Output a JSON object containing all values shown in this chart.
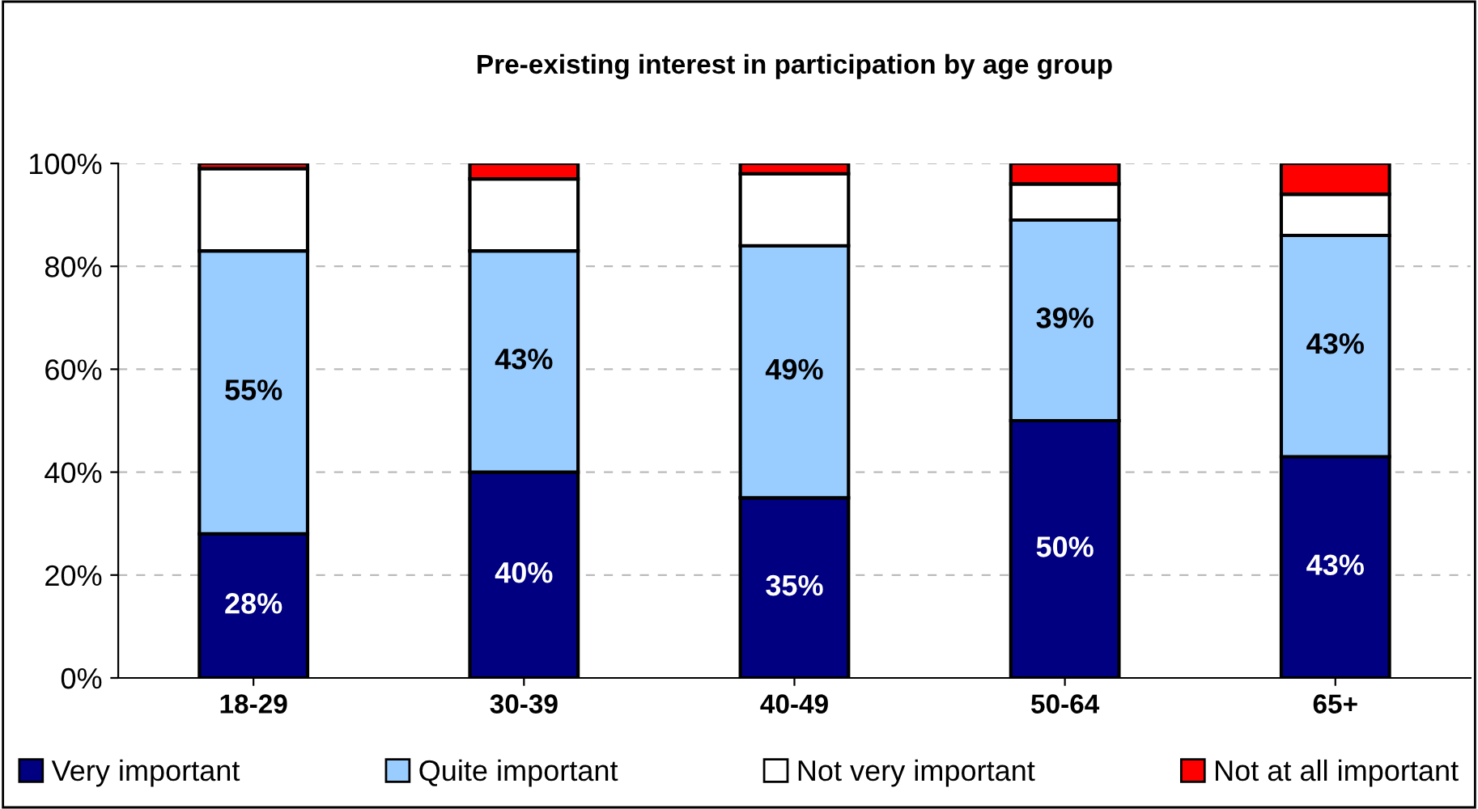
{
  "chart_data": {
    "type": "bar",
    "title": "Pre-existing interest in participation by age group",
    "categories": [
      "18-29",
      "30-39",
      "40-49",
      "50-64",
      "65+"
    ],
    "stacked": true,
    "series": [
      {
        "name": "Very important",
        "color": "#000080",
        "values": [
          28,
          40,
          35,
          50,
          43
        ],
        "value_labels": [
          "28%",
          "40%",
          "35%",
          "50%",
          "43%"
        ]
      },
      {
        "name": "Quite important",
        "color": "#99ccff",
        "values": [
          55,
          43,
          49,
          39,
          43
        ],
        "value_labels": [
          "55%",
          "43%",
          "49%",
          "39%",
          "43%"
        ]
      },
      {
        "name": "Not very important",
        "color": "#ffffff",
        "values": [
          16,
          14,
          14,
          7,
          8
        ]
      },
      {
        "name": "Not at all important",
        "color": "#ff0000",
        "values": [
          1,
          3,
          2,
          4,
          6
        ]
      }
    ],
    "ylim": [
      0,
      100
    ],
    "yticks": [
      {
        "value": 0,
        "label": "0%"
      },
      {
        "value": 20,
        "label": "20%"
      },
      {
        "value": 40,
        "label": "40%"
      },
      {
        "value": 60,
        "label": "60%"
      },
      {
        "value": 80,
        "label": "80%"
      },
      {
        "value": 100,
        "label": "100%"
      }
    ],
    "grid": "y",
    "legend": "bottom"
  }
}
